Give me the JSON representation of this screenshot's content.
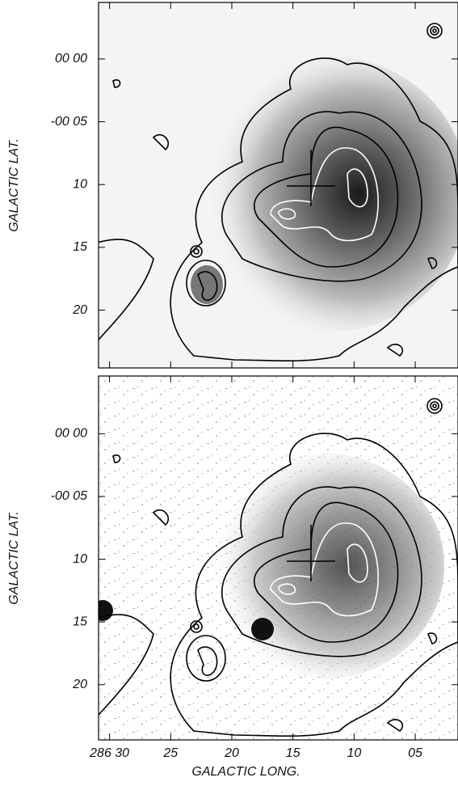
{
  "chart_data": [
    {
      "type": "contour",
      "ylabel": "GALACTIC LAT.",
      "xtick_labels": false,
      "xlim": [
        30.9,
        1.5
      ],
      "ylim": [
        4.5,
        -24.6
      ],
      "xticks": [
        30,
        25,
        20,
        15,
        10,
        5
      ],
      "yticks": [
        {
          "value": 0,
          "label": "00 00"
        },
        {
          "value": -5,
          "label": "-00 05"
        },
        {
          "value": -10,
          "label": "10"
        },
        {
          "value": -15,
          "label": "15"
        },
        {
          "value": -20,
          "label": "20"
        }
      ]
    },
    {
      "type": "contour",
      "ylabel": "GALACTIC LAT.",
      "xlabel": "GALACTIC LONG.",
      "xtick_labels": true,
      "xlim": [
        30.9,
        1.5
      ],
      "ylim": [
        4.6,
        -24.4
      ],
      "xticks": [
        {
          "value": 30,
          "label": "286 30"
        },
        25,
        20,
        15,
        10,
        {
          "value": 5,
          "label": "05"
        }
      ],
      "yticks": [
        {
          "value": 0,
          "label": "00 00"
        },
        {
          "value": -5,
          "label": "-00 05"
        },
        {
          "value": -10,
          "label": "10"
        },
        {
          "value": -15,
          "label": "15"
        },
        {
          "value": -20,
          "label": "20"
        }
      ]
    }
  ]
}
